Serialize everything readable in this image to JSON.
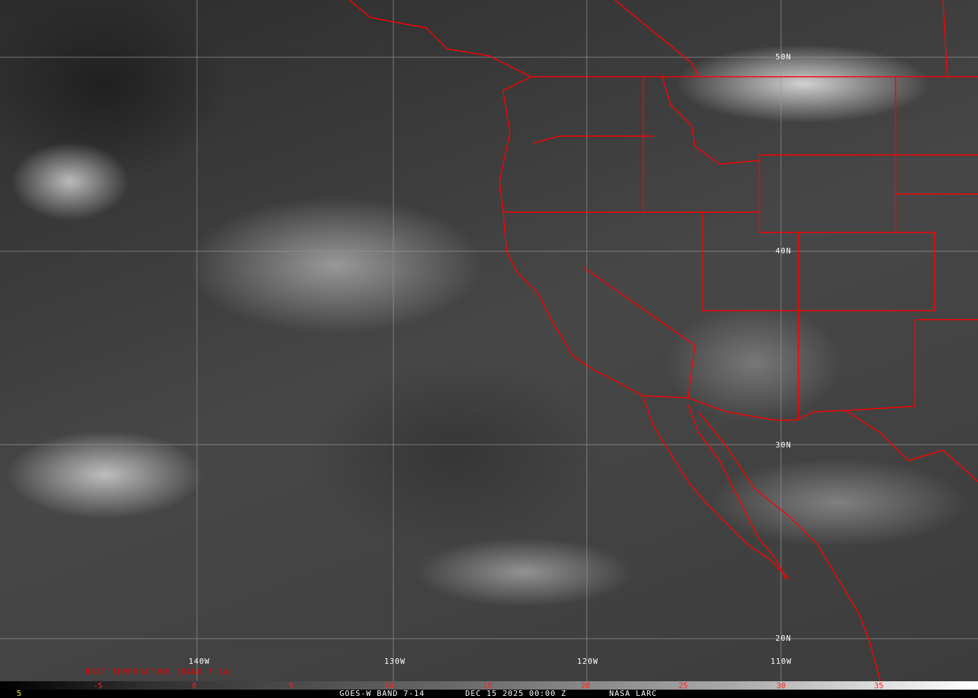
{
  "map": {
    "latitude_labels": [
      "50N",
      "40N",
      "30N",
      "20N"
    ],
    "longitude_labels": [
      "140W",
      "130W",
      "120W",
      "110W"
    ],
    "border_color": "#ff0000",
    "grid_color": "#9a9a9a"
  },
  "colorbar": {
    "title": "BRIT TEMPERATURE (BAND 7-14)",
    "ticks": [
      "-5",
      "0",
      "5",
      "10",
      "15",
      "20",
      "25",
      "30",
      "35"
    ],
    "tick_color": "#ff2020"
  },
  "footer": {
    "frame_number": "5",
    "satellite": "GOES-W BAND 7-14",
    "datetime": "DEC 15 2025 00:00 Z",
    "source": "NASA LARC"
  }
}
